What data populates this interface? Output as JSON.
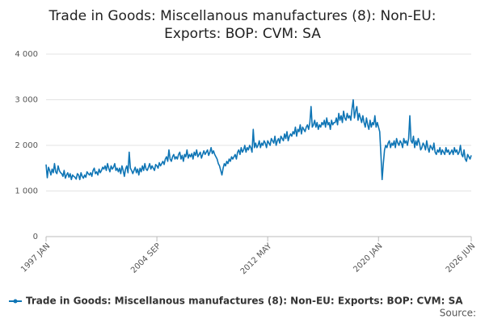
{
  "chart_data": {
    "type": "line",
    "title": "Trade in Goods: Miscellanous manufactures (8): Non-EU: Exports: BOP: CVM: SA",
    "source": "Source:",
    "categories": [
      "1997 JAN",
      null,
      null,
      null,
      null,
      null,
      null,
      null,
      null,
      null,
      null,
      null,
      null,
      null,
      null,
      null,
      null,
      null,
      null,
      null,
      null,
      null,
      null,
      null,
      null,
      null,
      null,
      null,
      null,
      null,
      null,
      null,
      null,
      null,
      null,
      null,
      null,
      null,
      null,
      null,
      null,
      null,
      null,
      null,
      null,
      null,
      null,
      null,
      null,
      null,
      null,
      null,
      null,
      null,
      null,
      null,
      null,
      null,
      null,
      null,
      null,
      null,
      null,
      null,
      null,
      null,
      null,
      null,
      null,
      null,
      null,
      null,
      null,
      null,
      null,
      null,
      null,
      null,
      null,
      null,
      null,
      null,
      null,
      null,
      null,
      null,
      null,
      null,
      null,
      null,
      null,
      null,
      "2004 SEP",
      null,
      null,
      null,
      null,
      null,
      null,
      null,
      null,
      null,
      null,
      null,
      null,
      null,
      null,
      null,
      null,
      null,
      null,
      null,
      null,
      null,
      null,
      null,
      null,
      null,
      null,
      null,
      null,
      null,
      null,
      null,
      null,
      null,
      null,
      null,
      null,
      null,
      null,
      null,
      null,
      null,
      null,
      null,
      null,
      null,
      null,
      null,
      null,
      null,
      null,
      null,
      null,
      null,
      null,
      null,
      null,
      null,
      null,
      null,
      null,
      null,
      null,
      null,
      null,
      null,
      null,
      null,
      null,
      null,
      null,
      null,
      null,
      null,
      null,
      null,
      null,
      null,
      null,
      null,
      null,
      null,
      null,
      null,
      null,
      null,
      null,
      null,
      null,
      null,
      null,
      null,
      "2012 MAY",
      null,
      null,
      null,
      null,
      null,
      null,
      null,
      null,
      null,
      null,
      null,
      null,
      null,
      null,
      null,
      null,
      null,
      null,
      null,
      null,
      null,
      null,
      null,
      null,
      null,
      null,
      null,
      null,
      null,
      null,
      null,
      null,
      null,
      null,
      null,
      null,
      null,
      null,
      null,
      null,
      null,
      null,
      null,
      null,
      null,
      null,
      null,
      null,
      null,
      null,
      null,
      null,
      null,
      null,
      null,
      null,
      null,
      null,
      null,
      null,
      null,
      null,
      null,
      null,
      null,
      null,
      null,
      null,
      null,
      null,
      null,
      null,
      null,
      null,
      null,
      null,
      null,
      null,
      null,
      null,
      null,
      null,
      null,
      null,
      null,
      null,
      null,
      null,
      null,
      null,
      null,
      "2020 JAN",
      null,
      null,
      null,
      null,
      null,
      null,
      null,
      null,
      null,
      null,
      null,
      null,
      null,
      null,
      null,
      null,
      null,
      null,
      null,
      null,
      null,
      null,
      null,
      null,
      null,
      null,
      null,
      null,
      null,
      null,
      null,
      null,
      null,
      null,
      null,
      null,
      null,
      null,
      null,
      null,
      null,
      null,
      null,
      null,
      null,
      null,
      null,
      null,
      null,
      null,
      null,
      null,
      null,
      null,
      null,
      null,
      null,
      null,
      null,
      null,
      null,
      null,
      null,
      null,
      null,
      null,
      null,
      null,
      null,
      null,
      null,
      null,
      null,
      null,
      null,
      null,
      "2026 JUN"
    ],
    "series": [
      {
        "name": "Trade in Goods: Miscellanous manufactures (8): Non-EU: Exports: BOP: CVM: SA",
        "color": "#0f75b5",
        "values": [
          1580,
          1290,
          1520,
          1450,
          1350,
          1480,
          1400,
          1600,
          1420,
          1380,
          1550,
          1450,
          1400,
          1380,
          1320,
          1450,
          1280,
          1350,
          1400,
          1300,
          1380,
          1250,
          1350,
          1320,
          1300,
          1260,
          1380,
          1350,
          1250,
          1400,
          1320,
          1280,
          1350,
          1300,
          1420,
          1380,
          1350,
          1400,
          1320,
          1450,
          1500,
          1380,
          1420,
          1350,
          1480,
          1400,
          1450,
          1520,
          1480,
          1550,
          1450,
          1600,
          1500,
          1420,
          1550,
          1480,
          1520,
          1600,
          1450,
          1500,
          1420,
          1500,
          1380,
          1550,
          1450,
          1320,
          1480,
          1550,
          1400,
          1850,
          1500,
          1450,
          1380,
          1450,
          1520,
          1400,
          1480,
          1350,
          1500,
          1420,
          1550,
          1450,
          1600,
          1480,
          1450,
          1520,
          1600,
          1480,
          1550,
          1500,
          1450,
          1580,
          1550,
          1500,
          1620,
          1550,
          1600,
          1650,
          1580,
          1700,
          1750,
          1650,
          1900,
          1700,
          1650,
          1750,
          1800,
          1700,
          1750,
          1700,
          1800,
          1850,
          1700,
          1780,
          1650,
          1800,
          1750,
          1900,
          1720,
          1800,
          1750,
          1820,
          1700,
          1850,
          1780,
          1900,
          1750,
          1800,
          1850,
          1720,
          1800,
          1880,
          1800,
          1850,
          1900,
          1780,
          1850,
          1950,
          1820,
          1880,
          1800,
          1750,
          1700,
          1600,
          1550,
          1450,
          1350,
          1500,
          1600,
          1550,
          1650,
          1600,
          1700,
          1650,
          1750,
          1700,
          1750,
          1800,
          1700,
          1850,
          1900,
          1800,
          1950,
          1850,
          1900,
          2000,
          1850,
          1950,
          1900,
          2000,
          1950,
          1850,
          2350,
          1950,
          2050,
          1950,
          2000,
          2100,
          1950,
          2050,
          2000,
          2100,
          2050,
          1950,
          2100,
          2050,
          2000,
          2150,
          2100,
          2050,
          2200,
          2000,
          2100,
          2150,
          2050,
          2200,
          2150,
          2100,
          2250,
          2150,
          2300,
          2100,
          2200,
          2250,
          2200,
          2300,
          2250,
          2400,
          2200,
          2350,
          2300,
          2450,
          2250,
          2400,
          2350,
          2300,
          2400,
          2450,
          2350,
          2500,
          2850,
          2400,
          2450,
          2550,
          2400,
          2500,
          2350,
          2450,
          2400,
          2500,
          2450,
          2550,
          2400,
          2600,
          2450,
          2500,
          2350,
          2550,
          2450,
          2500,
          2500,
          2600,
          2450,
          2700,
          2550,
          2650,
          2500,
          2750,
          2600,
          2550,
          2700,
          2600,
          2650,
          2550,
          2800,
          3000,
          2600,
          2750,
          2850,
          2550,
          2700,
          2600,
          2500,
          2650,
          2500,
          2400,
          2600,
          2450,
          2350,
          2550,
          2400,
          2500,
          2450,
          2650,
          2400,
          2500,
          2400,
          2300,
          1800,
          1250,
          1600,
          1900,
          2000,
          1950,
          2050,
          2100,
          1950,
          2050,
          2000,
          2100,
          1950,
          2150,
          2050,
          2000,
          2100,
          2050,
          1950,
          2150,
          2050,
          2100,
          2000,
          2150,
          2650,
          2100,
          2050,
          2200,
          1950,
          2100,
          2000,
          2150,
          2050,
          1900,
          1950,
          2050,
          2000,
          1900,
          2100,
          1950,
          1850,
          2000,
          1950,
          1900,
          2050,
          1850,
          1800,
          1900,
          1850,
          1950,
          1800,
          1900,
          1850,
          1800,
          1950,
          1850,
          1900,
          1800,
          1850,
          1900,
          1800,
          1950,
          1850,
          1900,
          1800,
          1850,
          2000,
          1800,
          1750,
          1900,
          1700,
          1650,
          1800,
          1750,
          1700,
          1780
        ]
      }
    ],
    "ylim": [
      0,
      4000
    ],
    "yticks": [
      0,
      {
        "value": 1000,
        "label": "1 000"
      },
      {
        "value": 2000,
        "label": "2 000"
      },
      {
        "value": 3000,
        "label": "3 000"
      },
      {
        "value": 4000,
        "label": "4 000"
      }
    ],
    "grid": true
  }
}
